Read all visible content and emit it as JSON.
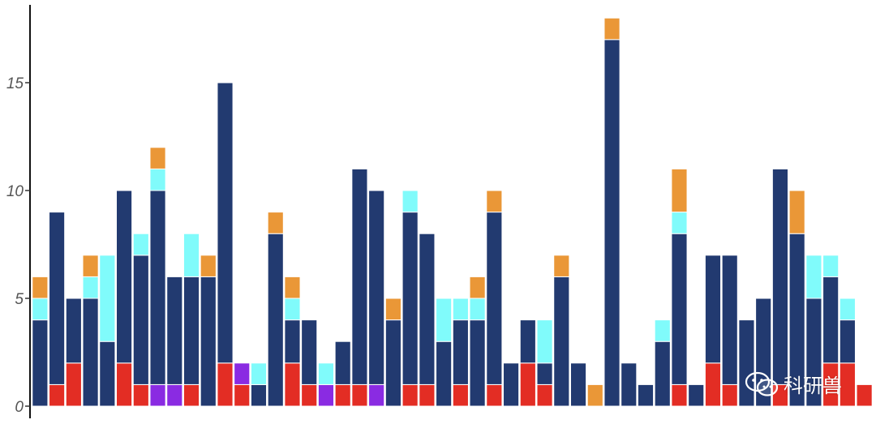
{
  "chart_data": {
    "type": "bar",
    "stacked": true,
    "ylim": [
      0,
      18.6
    ],
    "yticks": [
      0,
      5,
      10,
      15
    ],
    "ytick_labels": [
      "0",
      "5",
      "10",
      "15"
    ],
    "xlabel": "",
    "ylabel": "",
    "grid": false,
    "legend": "none",
    "series": [
      {
        "color": "#e32d24",
        "values": [
          0,
          1,
          2,
          0,
          0,
          2,
          1,
          0,
          0,
          1,
          0,
          2,
          1,
          0,
          0,
          2,
          1,
          0,
          1,
          1,
          0,
          0,
          1,
          1,
          0,
          1,
          0,
          1,
          0,
          2,
          1,
          0,
          0,
          0,
          0,
          0,
          0,
          0,
          1,
          0,
          2,
          1,
          0,
          0,
          1,
          0,
          0,
          2,
          2,
          1
        ]
      },
      {
        "color": "#8a2be2",
        "values": [
          0,
          0,
          0,
          0,
          0,
          0,
          0,
          1,
          1,
          0,
          0,
          0,
          1,
          0,
          0,
          0,
          0,
          1,
          0,
          0,
          1,
          0,
          0,
          0,
          0,
          0,
          0,
          0,
          0,
          0,
          0,
          0,
          0,
          0,
          0,
          0,
          0,
          0,
          0,
          0,
          0,
          0,
          0,
          0,
          0,
          0,
          0,
          0,
          0,
          0
        ]
      },
      {
        "color": "#223a70",
        "values": [
          4,
          8,
          3,
          5,
          3,
          8,
          6,
          9,
          5,
          5,
          6,
          13,
          0,
          1,
          8,
          2,
          3,
          0,
          2,
          10,
          9,
          4,
          8,
          7,
          3,
          3,
          4,
          8,
          2,
          2,
          1,
          6,
          2,
          0,
          17,
          2,
          1,
          3,
          7,
          1,
          5,
          6,
          4,
          5,
          10,
          8,
          5,
          4,
          2,
          0
        ]
      },
      {
        "color": "#80fbfb",
        "values": [
          1,
          0,
          0,
          1,
          4,
          0,
          1,
          1,
          0,
          2,
          0,
          0,
          0,
          1,
          0,
          1,
          0,
          1,
          0,
          0,
          0,
          0,
          1,
          0,
          2,
          1,
          1,
          0,
          0,
          0,
          2,
          0,
          0,
          0,
          0,
          0,
          0,
          1,
          1,
          0,
          0,
          0,
          0,
          0,
          0,
          0,
          2,
          1,
          1,
          0
        ]
      },
      {
        "color": "#ea9737",
        "values": [
          1,
          0,
          0,
          1,
          0,
          0,
          0,
          1,
          0,
          0,
          1,
          0,
          0,
          0,
          1,
          1,
          0,
          0,
          0,
          0,
          0,
          1,
          0,
          0,
          0,
          0,
          1,
          1,
          0,
          0,
          0,
          1,
          0,
          1,
          1,
          0,
          0,
          0,
          2,
          0,
          0,
          0,
          0,
          0,
          0,
          2,
          0,
          0,
          0,
          0
        ]
      }
    ]
  },
  "watermark": {
    "icon": "wechat-icon",
    "text": "科研兽"
  }
}
